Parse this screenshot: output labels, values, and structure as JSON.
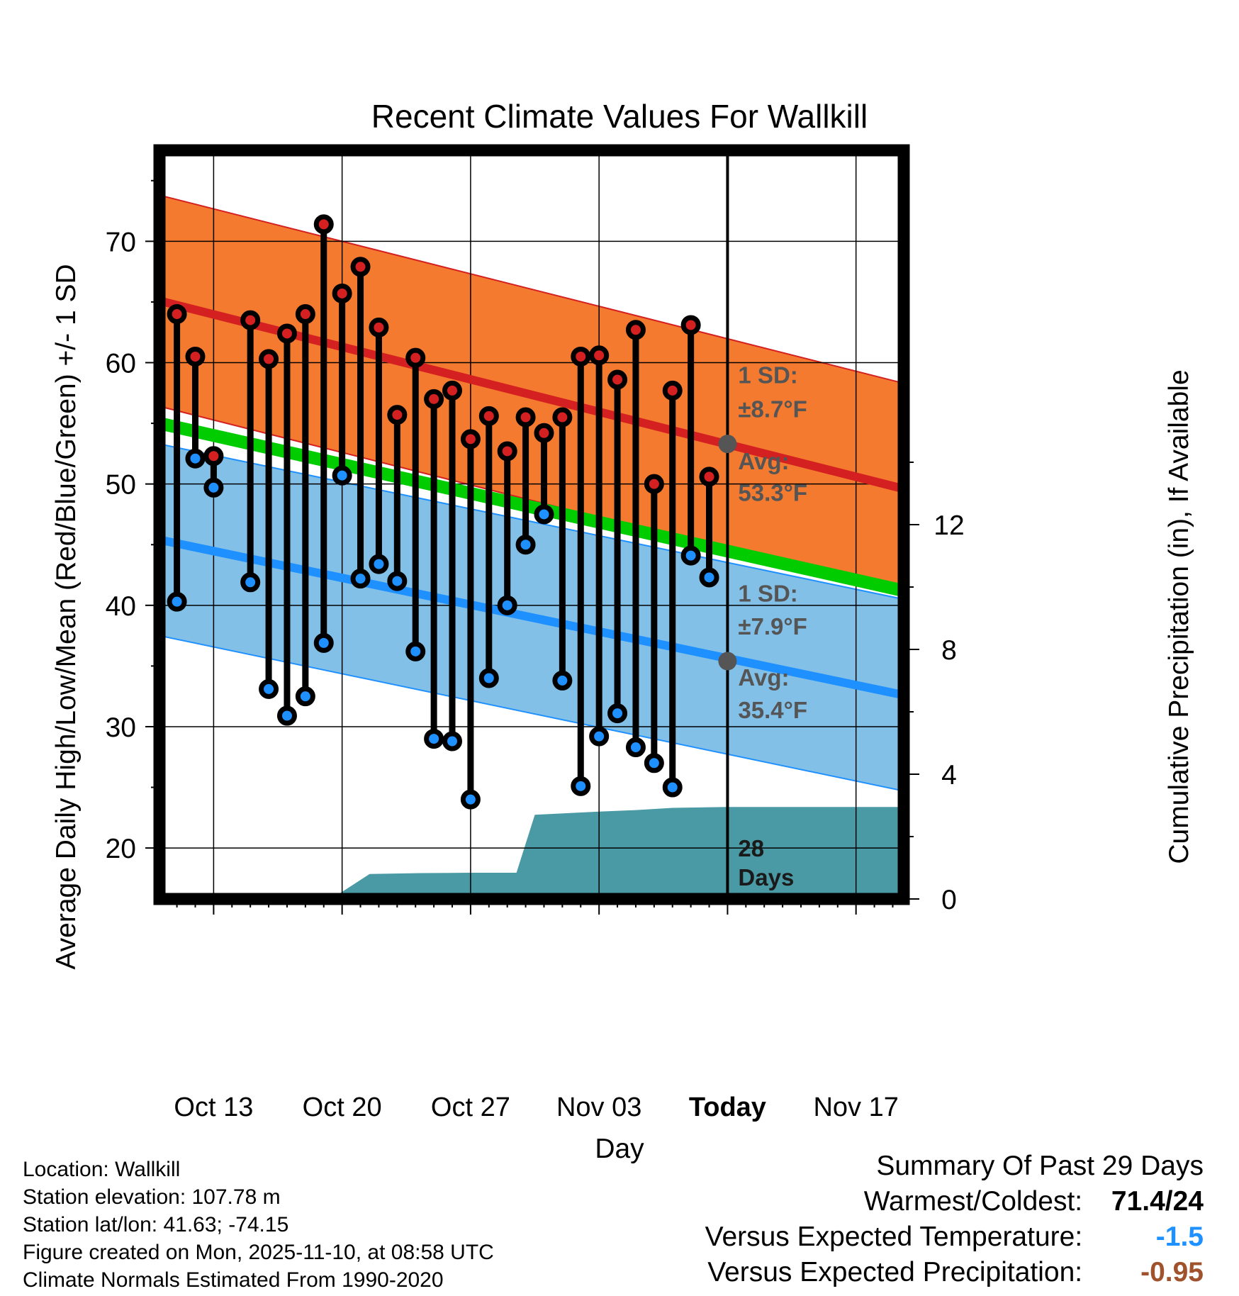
{
  "chart_data": {
    "type": "line",
    "title": "Recent Climate Values For Wallkill",
    "xlabel": "Day",
    "ylabel": "Average Daily High/Low/Mean (Red/Blue/Green) +/- 1 SD",
    "y2label": "Cumulative Precipitation (in), If Available",
    "ylim": [
      15.8,
      77.5
    ],
    "y2lim": [
      0,
      24
    ],
    "yticks": [
      20,
      30,
      40,
      50,
      60,
      70
    ],
    "y2ticks": [
      0,
      4,
      8,
      12
    ],
    "xlim": [
      -2.95,
      37.6
    ],
    "xticks": [
      {
        "day": 0,
        "label": "Oct 13"
      },
      {
        "day": 7,
        "label": "Oct 20"
      },
      {
        "day": 14,
        "label": "Oct 27"
      },
      {
        "day": 21,
        "label": "Nov 03"
      },
      {
        "day": 28,
        "label": "Today"
      },
      {
        "day": 35,
        "label": "Nov 17"
      }
    ],
    "days": [
      -2,
      -1,
      0,
      2,
      3,
      4,
      5,
      6,
      7,
      8,
      9,
      10,
      11,
      12,
      13,
      14,
      15,
      16,
      17,
      18,
      19,
      20,
      21,
      22,
      23,
      24,
      25,
      26,
      27
    ],
    "highs": [
      64.0,
      60.5,
      52.3,
      63.5,
      60.3,
      62.4,
      64.0,
      71.4,
      65.7,
      67.9,
      62.9,
      55.7,
      60.4,
      57.0,
      57.7,
      53.7,
      55.6,
      52.7,
      55.5,
      54.2,
      55.5,
      60.5,
      60.6,
      58.6,
      62.7,
      50.0,
      57.7,
      63.1,
      50.6
    ],
    "lows": [
      40.3,
      52.1,
      49.7,
      41.9,
      33.1,
      30.9,
      32.5,
      36.9,
      50.7,
      42.2,
      43.4,
      42.0,
      36.2,
      29.0,
      28.8,
      24.0,
      34.0,
      40.0,
      45.0,
      47.5,
      33.8,
      25.1,
      29.2,
      31.1,
      28.3,
      27.0,
      25.0,
      44.1,
      42.3
    ],
    "normal_high": {
      "start": 65.1,
      "end": 49.6,
      "sd": 8.7
    },
    "normal_low": {
      "start": 45.4,
      "end": 32.6,
      "sd": 7.9
    },
    "normal_mean": {
      "start": 55.0,
      "end": 41.2
    },
    "today": {
      "day": 28,
      "avg_high": 53.3,
      "avg_low": 35.4
    },
    "precip": {
      "days": [
        -2.95,
        6.4,
        8.5,
        11.3,
        13.9,
        16.5,
        17.5,
        21.0,
        23.0,
        25.0,
        28.0,
        37.6
      ],
      "values": [
        0,
        0,
        0.8,
        0.83,
        0.84,
        0.84,
        2.7,
        2.8,
        2.85,
        2.92,
        2.95,
        2.95
      ]
    },
    "annotations": {
      "high_sd_label": "1 SD:",
      "high_sd_value": "±8.7°F",
      "high_avg_label": "Avg:",
      "high_avg_value": "53.3°F",
      "low_sd_label": "1 SD:",
      "low_sd_value": "±7.9°F",
      "low_avg_label": "Avg:",
      "low_avg_value": "35.4°F",
      "days_count": "28",
      "days_word": "Days"
    },
    "colors": {
      "high_band": "#f47a30",
      "high_line": "#d42020",
      "low_band": "#82c0e8",
      "low_line": "#1e90ff",
      "mean_line": "#00cc00",
      "precip": "#4a9aa5",
      "marker_high": "#d42020",
      "marker_low": "#1e90ff",
      "annotation": "#555555",
      "today_dot": "#555555"
    }
  },
  "info": {
    "location": "Location: Wallkill",
    "elevation": "Station elevation: 107.78 m",
    "latlon": "Station lat/lon: 41.63; -74.15",
    "created": "Figure created on Mon, 2025-11-10, at 08:58 UTC",
    "normals": "Climate Normals Estimated From 1990-2020"
  },
  "summary": {
    "heading": "Summary Of Past 29 Days",
    "warmest_label": "Warmest/Coldest:",
    "warmest_value": "71.4/24",
    "temp_label": "Versus Expected Temperature:",
    "temp_value": "-1.5",
    "temp_color": "#1e90ff",
    "precip_label": "Versus Expected Precipitation:",
    "precip_value": "-0.95",
    "precip_color": "#a0522d"
  }
}
